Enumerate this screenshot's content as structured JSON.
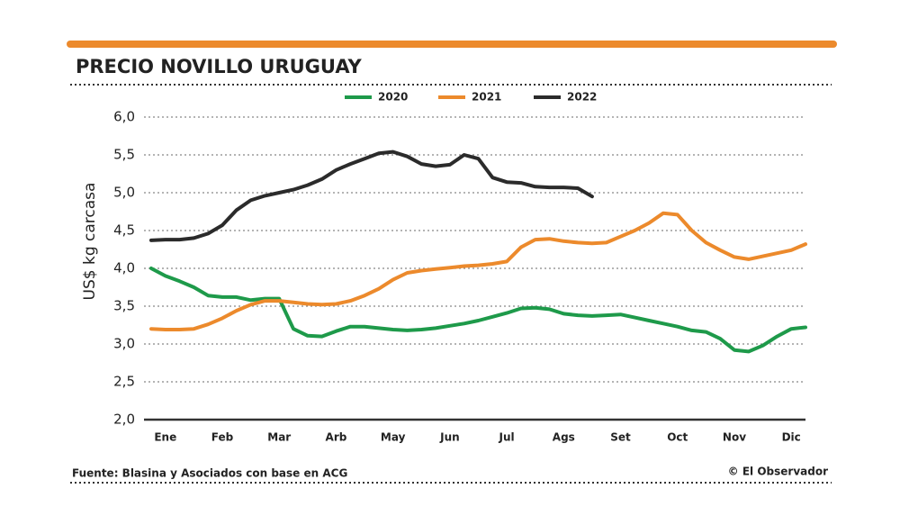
{
  "chart_data": {
    "type": "line",
    "title": "PRECIO NOVILLO URUGUAY",
    "y_label": "US$ kg carcasa",
    "source": "Fuente: Blasina y Asociados con base en  ACG",
    "credit": "© El Observador",
    "categories": [
      null,
      "Ene",
      null,
      null,
      null,
      "Feb",
      null,
      null,
      null,
      "Mar",
      null,
      null,
      null,
      "Arb",
      null,
      null,
      null,
      "May",
      null,
      null,
      null,
      "Jun",
      null,
      null,
      null,
      "Jul",
      null,
      null,
      null,
      "Ags",
      null,
      null,
      null,
      "Set",
      null,
      null,
      null,
      "Oct",
      null,
      null,
      null,
      "Nov",
      null,
      null,
      null,
      "Dic",
      null
    ],
    "ylim": [
      2.0,
      6.0
    ],
    "yticks": [
      {
        "value": 2.0,
        "label": "2,0"
      },
      {
        "value": 2.5,
        "label": "2,5"
      },
      {
        "value": 3.0,
        "label": "3,0"
      },
      {
        "value": 3.5,
        "label": "3,5"
      },
      {
        "value": 4.0,
        "label": "4,0"
      },
      {
        "value": 4.5,
        "label": "4,5"
      },
      {
        "value": 5.0,
        "label": "5,0"
      },
      {
        "value": 5.5,
        "label": "5,5"
      },
      {
        "value": 6.0,
        "label": "6,0"
      }
    ],
    "grid": true,
    "legend": "top",
    "series": [
      {
        "name": "2020",
        "color": "#1e9a4a",
        "values": [
          4.0,
          3.9,
          3.83,
          3.75,
          3.64,
          3.62,
          3.62,
          3.58,
          3.6,
          3.6,
          3.2,
          3.11,
          3.1,
          3.17,
          3.23,
          3.23,
          3.21,
          3.19,
          3.18,
          3.19,
          3.21,
          3.24,
          3.27,
          3.31,
          3.36,
          3.41,
          3.47,
          3.48,
          3.46,
          3.4,
          3.38,
          3.37,
          3.38,
          3.39,
          3.35,
          3.31,
          3.27,
          3.23,
          3.18,
          3.16,
          3.07,
          2.92,
          2.9,
          2.98,
          3.1,
          3.2,
          3.22
        ]
      },
      {
        "name": "2021",
        "color": "#ec8a2c",
        "values": [
          3.2,
          3.19,
          3.19,
          3.2,
          3.26,
          3.34,
          3.44,
          3.52,
          3.57,
          3.57,
          3.55,
          3.53,
          3.52,
          3.53,
          3.57,
          3.64,
          3.73,
          3.85,
          3.94,
          3.97,
          3.99,
          4.01,
          4.03,
          4.04,
          4.06,
          4.09,
          4.28,
          4.38,
          4.39,
          4.36,
          4.34,
          4.33,
          4.34,
          4.42,
          4.5,
          4.6,
          4.73,
          4.71,
          4.5,
          4.34,
          4.24,
          4.15,
          4.12,
          4.16,
          4.2,
          4.24,
          4.32
        ]
      },
      {
        "name": "2022",
        "color": "#2b2b2b",
        "values": [
          4.37,
          4.38,
          4.38,
          4.4,
          4.46,
          4.57,
          4.77,
          4.9,
          4.96,
          5.0,
          5.04,
          5.1,
          5.18,
          5.3,
          5.38,
          5.45,
          5.52,
          5.54,
          5.48,
          5.38,
          5.35,
          5.37,
          5.5,
          5.45,
          5.2,
          5.14,
          5.13,
          5.08,
          5.07,
          5.07,
          5.06,
          4.95,
          null,
          null,
          null,
          null,
          null,
          null,
          null,
          null,
          null,
          null,
          null,
          null,
          null,
          null,
          null
        ]
      }
    ]
  }
}
